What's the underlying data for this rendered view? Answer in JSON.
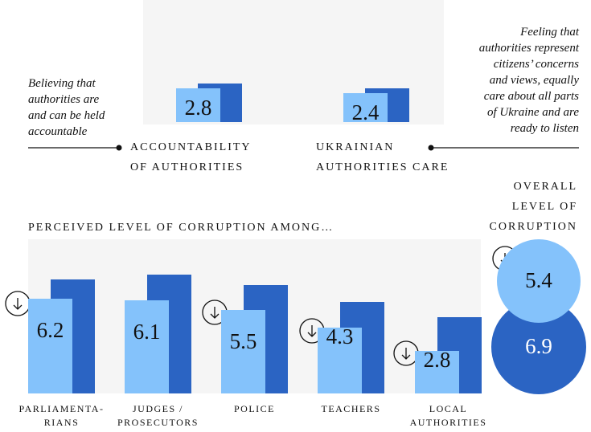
{
  "chart_data": [
    {
      "type": "bar",
      "categories": [
        "ACCOUNTABILITY\nOF AUTHORITIES",
        "UKRAINIAN\nAUTHORITIES CARE"
      ],
      "annotations": [
        "Believing that\nauthorities are\nand can be held\naccountable",
        "Feeling that\nauthorities represent\ncitizens’ concerns\nand views, equally\ncare about all parts\nof Ukraine and are\nready to listen"
      ],
      "series": [
        {
          "color": "#84c2fb",
          "values": [
            2.8,
            2.4
          ]
        },
        {
          "color": "#2b64c3",
          "values": [
            3.2,
            2.8
          ]
        }
      ]
    },
    {
      "type": "bar",
      "title": "PERCEIVED LEVEL OF CORRUPTION AMONG…",
      "categories": [
        "PARLIAMENTA-\nRIANS",
        "JUDGES /\nPROSECUTORS",
        "POLICE",
        "TEACHERS",
        "LOCAL\nAUTHORITIES"
      ],
      "series": [
        {
          "color": "#84c2fb",
          "values": [
            6.2,
            6.1,
            5.5,
            4.3,
            2.8
          ]
        },
        {
          "color": "#2b64c3",
          "values": [
            7.5,
            7.8,
            7.1,
            6.0,
            5.0
          ]
        }
      ]
    },
    {
      "type": "bubble",
      "title": "OVERALL\nLEVEL OF\nCORRUPTION",
      "series": [
        {
          "color": "#2b64c3",
          "values": [
            6.9
          ]
        },
        {
          "color": "#84c2fb",
          "values": [
            5.4
          ]
        }
      ]
    }
  ]
}
